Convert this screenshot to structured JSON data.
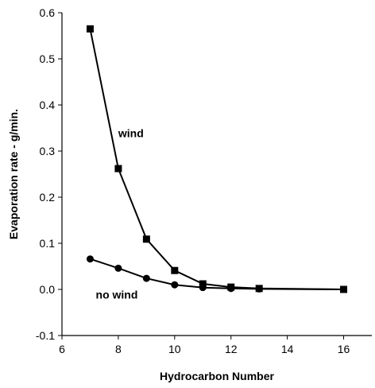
{
  "chart_data": {
    "type": "line",
    "xlabel": "Hydrocarbon Number",
    "ylabel": "Evaporation rate  - g/min.",
    "xlim": [
      6,
      17
    ],
    "ylim": [
      -0.1,
      0.6
    ],
    "xticks": [
      6,
      8,
      10,
      12,
      14,
      16
    ],
    "yticks": [
      -0.1,
      0.0,
      0.1,
      0.2,
      0.3,
      0.4,
      0.5,
      0.6
    ],
    "xtick_labels": [
      "6",
      "8",
      "10",
      "12",
      "14",
      "16"
    ],
    "ytick_labels": [
      "-0.1",
      "0.0",
      "0.1",
      "0.2",
      "0.3",
      "0.4",
      "0.5",
      "0.6"
    ],
    "grid": false,
    "series": [
      {
        "marker": "square",
        "x": [
          7,
          8,
          9,
          10,
          11,
          12,
          13,
          16
        ],
        "y": [
          0.565,
          0.262,
          0.109,
          0.041,
          0.012,
          0.005,
          0.002,
          0.0
        ]
      },
      {
        "marker": "circle",
        "x": [
          7,
          8,
          9,
          10,
          11,
          12,
          13,
          16
        ],
        "y": [
          0.066,
          0.046,
          0.024,
          0.01,
          0.004,
          0.002,
          0.001,
          0.0
        ]
      }
    ],
    "annotations": [
      {
        "text": "wind",
        "x": 8.0,
        "y": 0.33
      },
      {
        "text": "no wind",
        "x": 7.2,
        "y": -0.02
      }
    ]
  }
}
